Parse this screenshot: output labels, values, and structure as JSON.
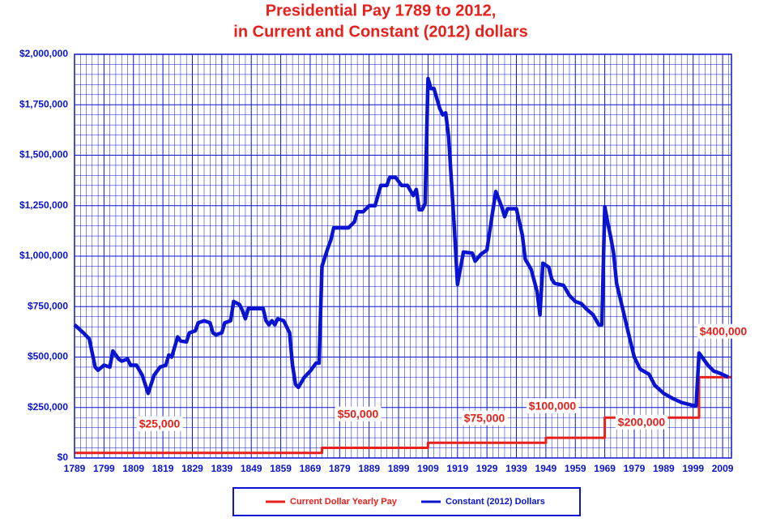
{
  "chart_data": {
    "type": "line",
    "title": "Presidential Pay 1789 to 2012,",
    "subtitle": "in Current and Constant (2012) dollars",
    "xlim": [
      1789,
      2012
    ],
    "xticks": [
      1789,
      1799,
      1809,
      1819,
      1829,
      1839,
      1849,
      1859,
      1869,
      1879,
      1889,
      1899,
      1909,
      1919,
      1929,
      1939,
      1949,
      1959,
      1969,
      1979,
      1989,
      1999,
      2009
    ],
    "ylim": [
      0,
      2000000
    ],
    "yticks": [
      {
        "value": 0,
        "label": "$0"
      },
      {
        "value": 250000,
        "label": "$250,000"
      },
      {
        "value": 500000,
        "label": "$500,000"
      },
      {
        "value": 750000,
        "label": "$750,000"
      },
      {
        "value": 1000000,
        "label": "$1,000,000"
      },
      {
        "value": 1250000,
        "label": "$1,250,000"
      },
      {
        "value": 1500000,
        "label": "$1,500,000"
      },
      {
        "value": 1750000,
        "label": "$1,750,000"
      },
      {
        "value": 2000000,
        "label": "$2,000,000"
      }
    ],
    "grid": true,
    "legend": "bottom",
    "series": [
      {
        "name": "Current Dollar Yearly Pay",
        "color": "#e8201c",
        "x": [
          1789,
          1873,
          1873,
          1909,
          1909,
          1949,
          1949,
          1969,
          1969,
          2001,
          2001,
          2012
        ],
        "values": [
          25000,
          25000,
          50000,
          50000,
          75000,
          75000,
          100000,
          100000,
          200000,
          200000,
          400000,
          400000
        ]
      },
      {
        "name": "Constant (2012) Dollars",
        "color": "#0a14d0",
        "x": [
          1789,
          1792,
          1794,
          1796,
          1797,
          1799,
          1801,
          1802,
          1804,
          1805,
          1807,
          1808,
          1810,
          1812,
          1814,
          1816,
          1818,
          1820,
          1821,
          1822,
          1824,
          1825,
          1827,
          1828,
          1830,
          1831,
          1833,
          1835,
          1836,
          1837,
          1839,
          1840,
          1842,
          1843,
          1845,
          1846,
          1847,
          1848,
          1853,
          1854,
          1855,
          1856,
          1857,
          1858,
          1860,
          1862,
          1863,
          1864,
          1865,
          1867,
          1869,
          1871,
          1872,
          1873,
          1875,
          1876,
          1877,
          1882,
          1884,
          1885,
          1887,
          1889,
          1891,
          1893,
          1895,
          1896,
          1898,
          1900,
          1902,
          1904,
          1905,
          1906,
          1907,
          1908,
          1909,
          1910,
          1911,
          1913,
          1914,
          1915,
          1916,
          1918,
          1919,
          1921,
          1924,
          1925,
          1927,
          1929,
          1931,
          1932,
          1934,
          1935,
          1936,
          1939,
          1941,
          1942,
          1944,
          1946,
          1947,
          1948,
          1950,
          1951,
          1952,
          1955,
          1957,
          1959,
          1961,
          1963,
          1965,
          1967,
          1968,
          1969,
          1970,
          1971,
          1972,
          1973,
          1975,
          1977,
          1979,
          1981,
          1984,
          1986,
          1989,
          1992,
          1995,
          1999,
          2000,
          2001,
          2002,
          2004,
          2006,
          2008,
          2011
        ],
        "values": [
          660000,
          620000,
          590000,
          450000,
          435000,
          460000,
          450000,
          530000,
          490000,
          480000,
          490000,
          460000,
          460000,
          410000,
          320000,
          410000,
          450000,
          460000,
          510000,
          500000,
          600000,
          580000,
          575000,
          620000,
          630000,
          670000,
          680000,
          670000,
          620000,
          610000,
          620000,
          670000,
          680000,
          775000,
          760000,
          730000,
          690000,
          740000,
          740000,
          680000,
          660000,
          680000,
          660000,
          690000,
          680000,
          620000,
          460000,
          365000,
          350000,
          400000,
          430000,
          470000,
          470000,
          950000,
          1040000,
          1080000,
          1140000,
          1140000,
          1170000,
          1220000,
          1220000,
          1250000,
          1250000,
          1350000,
          1350000,
          1390000,
          1390000,
          1350000,
          1350000,
          1300000,
          1330000,
          1230000,
          1230000,
          1260000,
          1880000,
          1830000,
          1830000,
          1730000,
          1700000,
          1710000,
          1590000,
          1125000,
          860000,
          1020000,
          1015000,
          975000,
          1010000,
          1030000,
          1225000,
          1320000,
          1245000,
          1195000,
          1235000,
          1235000,
          1105000,
          985000,
          935000,
          825000,
          710000,
          965000,
          945000,
          885000,
          865000,
          855000,
          805000,
          775000,
          765000,
          735000,
          710000,
          660000,
          660000,
          1245000,
          1165000,
          1095000,
          1015000,
          865000,
          745000,
          620000,
          500000,
          440000,
          415000,
          360000,
          320000,
          295000,
          275000,
          260000,
          260000,
          520000,
          500000,
          460000,
          430000,
          420000,
          400000
        ]
      }
    ],
    "annotations": [
      "$25,000",
      "$50,000",
      "$75,000",
      "$100,000",
      "$200,000",
      "$400,000"
    ]
  }
}
